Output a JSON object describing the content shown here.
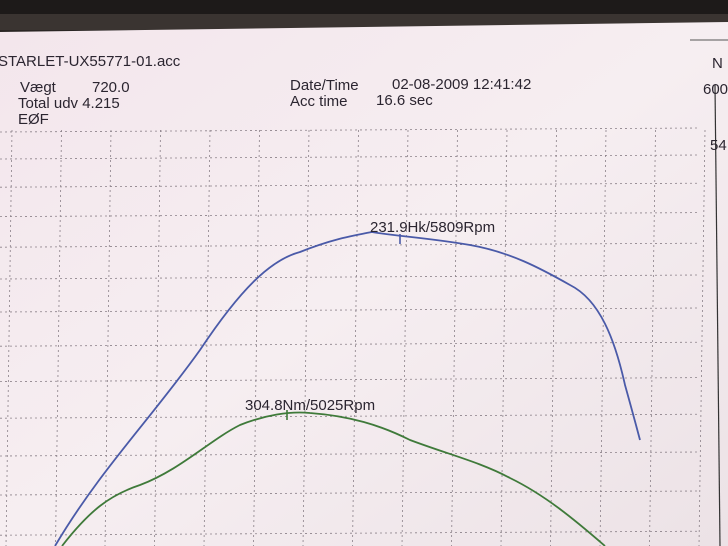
{
  "header": {
    "file": "STARLET-UX55771-01.acc",
    "weight_label": "Vægt",
    "weight": "720.0",
    "total": "Total udv 4.215",
    "eof": "EØF",
    "datetime_label": "Date/Time",
    "datetime": "02-08-2009 12:41:42",
    "acc_label": "Acc time",
    "acc": "16.6 sec"
  },
  "annotations": {
    "power": "231.9Hk/5809Rpm",
    "torque": "304.8Nm/5025Rpm"
  },
  "right_scale": {
    "corner": "N",
    "top": "600",
    "next": "54"
  }
}
